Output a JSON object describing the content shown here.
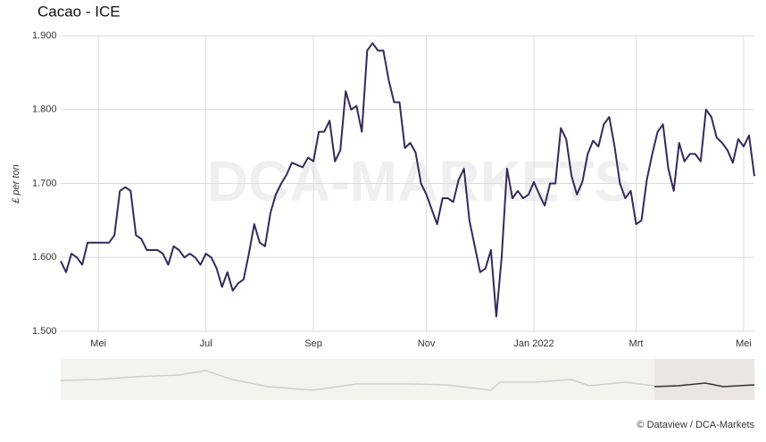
{
  "chart_data": {
    "type": "line",
    "title": "Cacao - ICE",
    "y_label": "£ per ton",
    "watermark": "DCA-MARKETS",
    "credit": "© Dataview / DCA-Markets",
    "categories": [
      null,
      null,
      null,
      null,
      null,
      null,
      null,
      "Mei",
      null,
      null,
      null,
      null,
      null,
      null,
      null,
      null,
      null,
      null,
      null,
      null,
      null,
      null,
      null,
      null,
      null,
      null,
      null,
      "Jul",
      null,
      null,
      null,
      null,
      null,
      null,
      null,
      null,
      null,
      null,
      null,
      null,
      null,
      null,
      null,
      null,
      null,
      null,
      null,
      "Sep",
      null,
      null,
      null,
      null,
      null,
      null,
      null,
      null,
      null,
      null,
      null,
      null,
      null,
      null,
      null,
      null,
      null,
      null,
      null,
      null,
      "Nov",
      null,
      null,
      null,
      null,
      null,
      null,
      null,
      null,
      null,
      null,
      null,
      null,
      null,
      null,
      null,
      null,
      null,
      null,
      null,
      "Jan 2022",
      null,
      null,
      null,
      null,
      null,
      null,
      null,
      null,
      null,
      null,
      null,
      null,
      null,
      null,
      null,
      null,
      null,
      null,
      "Mrt",
      null,
      null,
      null,
      null,
      null,
      null,
      null,
      null,
      null,
      null,
      null,
      null,
      null,
      null,
      null,
      null,
      null,
      null,
      null,
      "Mei",
      null,
      null
    ],
    "series": [
      {
        "name": "Cacao - ICE",
        "color": "#35295a",
        "values": [
          1595,
          1580,
          1605,
          1600,
          1590,
          1620,
          1620,
          1620,
          1620,
          1620,
          1630,
          1690,
          1695,
          1690,
          1630,
          1625,
          1610,
          1610,
          1610,
          1605,
          1590,
          1615,
          1610,
          1600,
          1605,
          1600,
          1590,
          1605,
          1600,
          1585,
          1560,
          1580,
          1555,
          1565,
          1570,
          1605,
          1645,
          1620,
          1615,
          1660,
          1685,
          1700,
          1712,
          1728,
          1725,
          1722,
          1735,
          1730,
          1770,
          1770,
          1785,
          1730,
          1745,
          1825,
          1800,
          1805,
          1770,
          1880,
          1890,
          1880,
          1880,
          1840,
          1810,
          1810,
          1748,
          1755,
          1742,
          1700,
          1685,
          1665,
          1645,
          1680,
          1680,
          1675,
          1705,
          1720,
          1650,
          1615,
          1580,
          1585,
          1610,
          1520,
          1600,
          1720,
          1680,
          1690,
          1680,
          1685,
          1702,
          1685,
          1670,
          1700,
          1700,
          1775,
          1760,
          1710,
          1685,
          1702,
          1740,
          1758,
          1750,
          1780,
          1790,
          1750,
          1700,
          1680,
          1690,
          1645,
          1650,
          1705,
          1740,
          1770,
          1780,
          1720,
          1690,
          1755,
          1730,
          1740,
          1740,
          1730,
          1800,
          1790,
          1762,
          1755,
          1745,
          1728,
          1760,
          1750,
          1765,
          1710
        ]
      }
    ],
    "ylim": [
      1500,
      1900
    ],
    "yticks": [
      {
        "value": 1500,
        "label": "1.500"
      },
      {
        "value": 1600,
        "label": "1.600"
      },
      {
        "value": 1700,
        "label": "1.700"
      },
      {
        "value": 1800,
        "label": "1.800"
      },
      {
        "value": 1900,
        "label": "1.900"
      }
    ],
    "grid": true
  }
}
